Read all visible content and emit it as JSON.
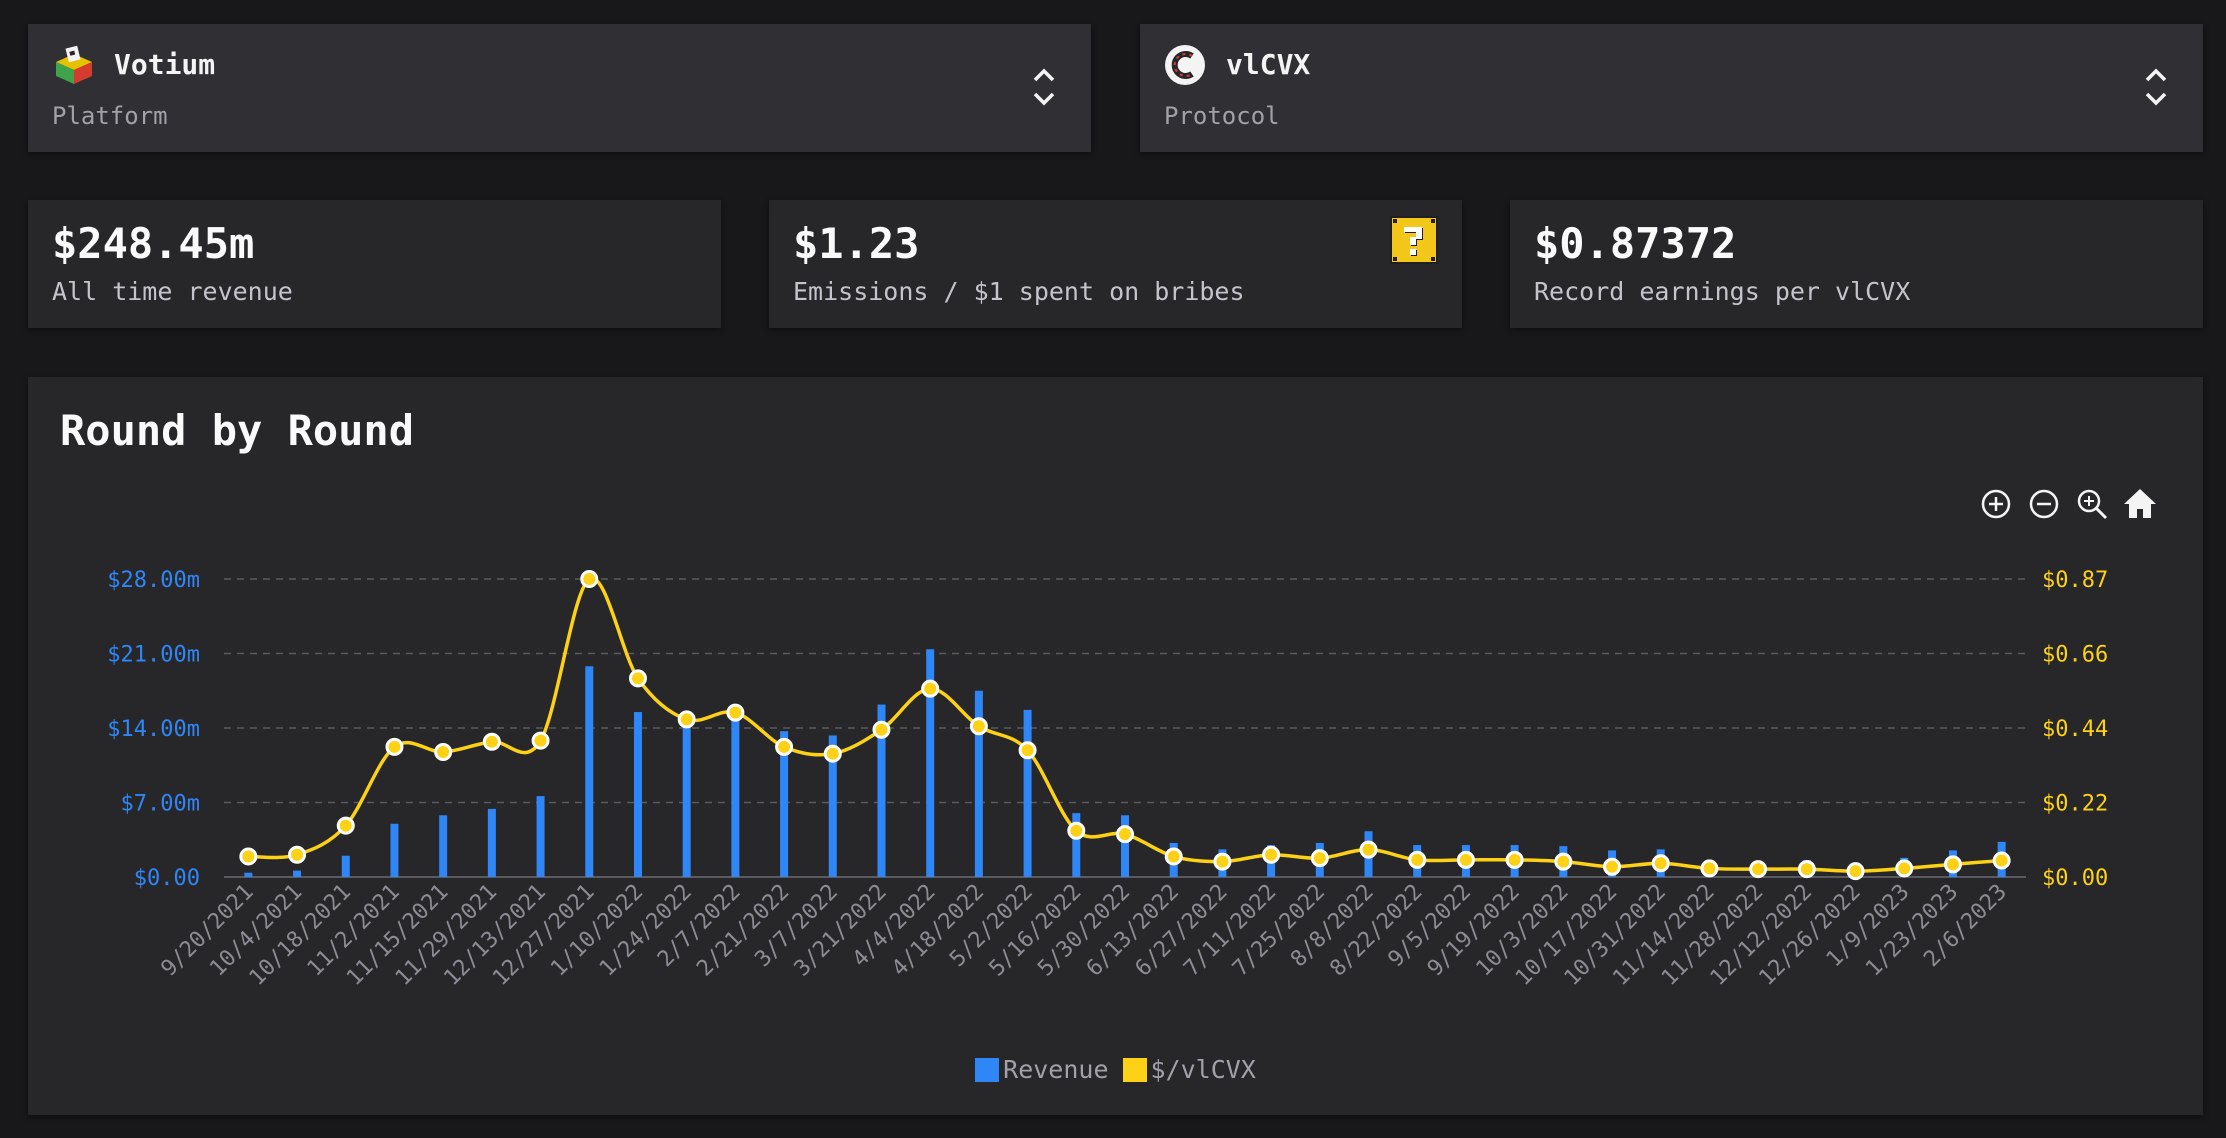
{
  "platform": {
    "name": "Votium",
    "type": "Platform",
    "icon": "ballot-box-icon"
  },
  "protocol": {
    "name": "vlCVX",
    "type": "Protocol",
    "icon": "convex-logo-icon"
  },
  "stats": {
    "revenue": {
      "value": "$248.45m",
      "label": "All time revenue"
    },
    "emissions": {
      "value": "$1.23",
      "label": "Emissions / $1 spent on bribes",
      "icon": "question-block-icon"
    },
    "record": {
      "value": "$0.87372",
      "label": "Record earnings per vlCVX"
    }
  },
  "colors": {
    "revenue": "#2f86f6",
    "per_vlcvx": "#fcd116"
  },
  "chart_data": {
    "type": "bar",
    "title": "Round by Round",
    "categories": [
      "9/20/2021",
      "10/4/2021",
      "10/18/2021",
      "11/2/2021",
      "11/15/2021",
      "11/29/2021",
      "12/13/2021",
      "12/27/2021",
      "1/10/2022",
      "1/24/2022",
      "2/7/2022",
      "2/21/2022",
      "3/7/2022",
      "3/21/2022",
      "4/4/2022",
      "4/18/2022",
      "5/2/2022",
      "5/16/2022",
      "5/30/2022",
      "6/13/2022",
      "6/27/2022",
      "7/11/2022",
      "7/25/2022",
      "8/8/2022",
      "8/22/2022",
      "9/5/2022",
      "9/19/2022",
      "10/3/2022",
      "10/17/2022",
      "10/31/2022",
      "11/14/2022",
      "11/28/2022",
      "12/12/2022",
      "12/26/2022",
      "1/9/2023",
      "1/23/2023",
      "2/6/2023"
    ],
    "series": [
      {
        "name": "Revenue",
        "type": "bar",
        "axis": "left",
        "values": [
          0.4,
          0.6,
          2.0,
          5.0,
          5.8,
          6.4,
          7.6,
          19.8,
          15.5,
          14.5,
          15.4,
          13.7,
          13.3,
          16.2,
          21.4,
          17.5,
          15.7,
          6.0,
          5.8,
          3.2,
          2.6,
          3.0,
          3.2,
          4.3,
          3.0,
          3.0,
          3.0,
          2.9,
          2.5,
          2.6,
          1.5,
          1.5,
          1.6,
          1.1,
          1.8,
          2.5,
          3.3
        ]
      },
      {
        "name": "$/vlCVX",
        "type": "line",
        "axis": "right",
        "values": [
          0.06,
          0.065,
          0.15,
          0.38,
          0.365,
          0.395,
          0.398,
          0.87,
          0.58,
          0.46,
          0.48,
          0.38,
          0.36,
          0.43,
          0.55,
          0.44,
          0.37,
          0.135,
          0.125,
          0.06,
          0.045,
          0.065,
          0.055,
          0.08,
          0.05,
          0.05,
          0.05,
          0.045,
          0.03,
          0.04,
          0.025,
          0.023,
          0.023,
          0.017,
          0.025,
          0.037,
          0.048
        ]
      }
    ],
    "y_left": {
      "ticks": [
        "$0.00",
        "$7.00m",
        "$14.00m",
        "$21.00m",
        "$28.00m"
      ],
      "min": 0,
      "max": 28
    },
    "y_right": {
      "ticks": [
        "$0.00",
        "$0.22",
        "$0.44",
        "$0.66",
        "$0.87"
      ],
      "min": 0,
      "max": 0.87
    },
    "grid": true,
    "legend_position": "bottom-center"
  }
}
